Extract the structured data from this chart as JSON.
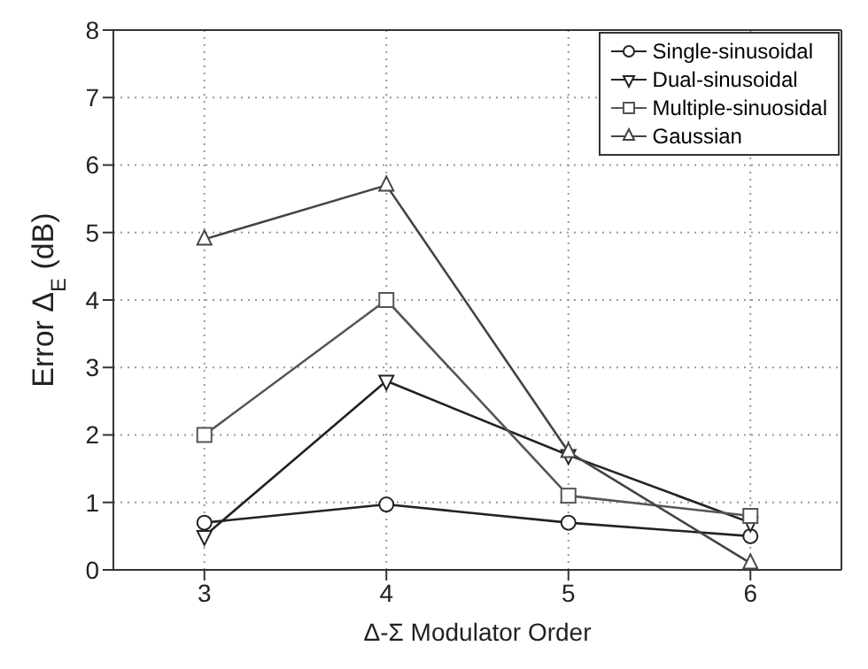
{
  "chart_data": {
    "type": "line",
    "xlabel": "Δ-Σ Modulator Order",
    "ylabel": "Error Δ$_{E}$ (dB)",
    "x": [
      3,
      4,
      5,
      6
    ],
    "series": [
      {
        "name": "Single-sinusoidal",
        "color": "#222222",
        "marker": "circle",
        "values": [
          0.7,
          0.97,
          0.7,
          0.5
        ]
      },
      {
        "name": "Dual-sinusoidal",
        "color": "#222222",
        "marker": "triangle-down",
        "values": [
          0.5,
          2.8,
          1.7,
          0.7
        ]
      },
      {
        "name": "Multiple-sinuosidal",
        "color": "#555555",
        "marker": "square",
        "values": [
          2.0,
          4.0,
          1.1,
          0.8
        ]
      },
      {
        "name": "Gaussian",
        "color": "#444444",
        "marker": "triangle",
        "values": [
          4.9,
          5.7,
          1.75,
          0.1
        ]
      }
    ],
    "xlim": [
      2.5,
      6.5
    ],
    "xticks": [
      3,
      4,
      5,
      6
    ],
    "ylim": [
      0,
      8
    ],
    "yticks": [
      0,
      1,
      2,
      3,
      4,
      5,
      6,
      7,
      8
    ],
    "grid": true,
    "legend": "top right",
    "line_style": "solid"
  }
}
